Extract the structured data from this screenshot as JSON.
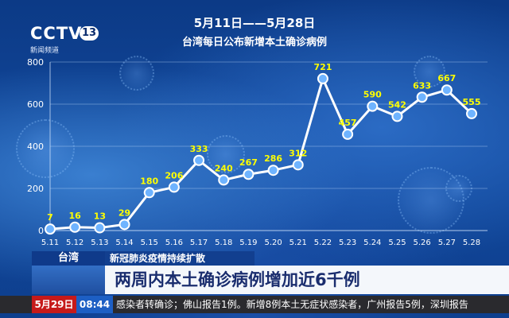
{
  "channel": {
    "name": "CCTV",
    "number": "13",
    "subtitle": "新闻频道"
  },
  "chart_data": {
    "type": "line",
    "title": "5月11日——5月28日",
    "subtitle": "台湾每日公布新增本土确诊病例",
    "xlabel": "",
    "ylabel": "",
    "categories": [
      "5.11",
      "5.12",
      "5.13",
      "5.14",
      "5.15",
      "5.16",
      "5.17",
      "5.18",
      "5.19",
      "5.20",
      "5.21",
      "5.22",
      "5.23",
      "5.24",
      "5.25",
      "5.26",
      "5.27",
      "5.28"
    ],
    "values": [
      7,
      16,
      13,
      29,
      180,
      206,
      333,
      240,
      267,
      286,
      312,
      721,
      457,
      590,
      542,
      633,
      667,
      555
    ],
    "ylim": [
      0,
      800
    ],
    "yticks": [
      0,
      200,
      400,
      600,
      800
    ],
    "grid": true,
    "colors": {
      "line": "#ffffff",
      "marker_fill": "#6fb4ff",
      "label": "#ffff00"
    }
  },
  "lower_third": {
    "region": "台湾",
    "topic": "新冠肺炎疫情持续扩散",
    "headline": "两周内本土确诊病例增加近6千例"
  },
  "ticker": {
    "date": "5月29日",
    "time": "08:44",
    "text": "感染者转确诊；佛山报告1例。新增8例本土无症状感染者，广州报告5例，深圳报告"
  }
}
